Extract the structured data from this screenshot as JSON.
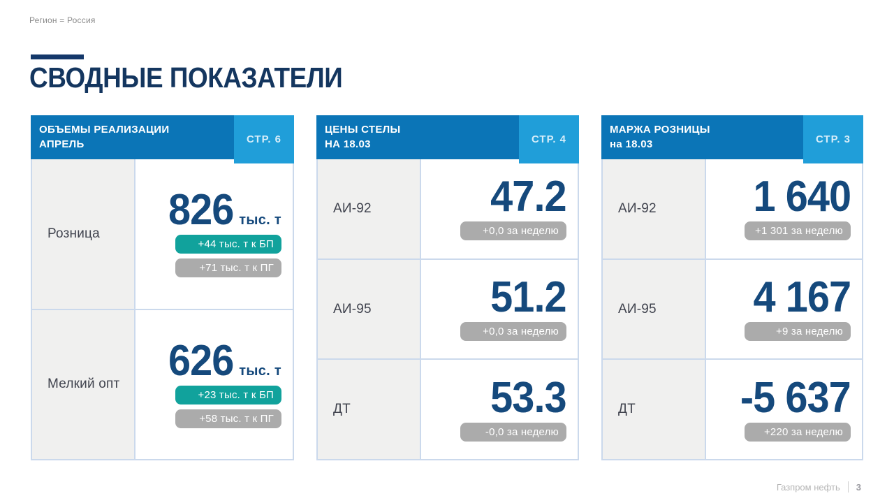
{
  "page": {
    "filter_label": "Регион = Россия",
    "title": "СВОДНЫЕ ПОКАЗАТЕЛИ",
    "footer": {
      "brand": "Газпром нефть",
      "page_number": "3"
    }
  },
  "colors": {
    "header_blue": "#0b75b7",
    "tab_blue": "#209ed9",
    "title_navy": "#14365f",
    "number_navy": "#15497c",
    "badge_teal": "#11a29c",
    "badge_gray": "#ababab",
    "label_cell_bg": "#f0f0ef",
    "grid_border": "#cbd9ec"
  },
  "cards": [
    {
      "title_line1": "ОБЪЕМЫ РЕАЛИЗАЦИИ",
      "title_line2": "АПРЕЛЬ",
      "page_ref": "СТР. 6",
      "rows": [
        {
          "label": "Розница",
          "value": "826",
          "unit": "тыс. т",
          "badges": [
            {
              "text": "+44 тыс. т к БП",
              "type": "teal"
            },
            {
              "text": "+71 тыс. т к ПГ",
              "type": "gray"
            }
          ]
        },
        {
          "label": "Мелкий опт",
          "value": "626",
          "unit": "тыс. т",
          "badges": [
            {
              "text": "+23 тыс. т к БП",
              "type": "teal"
            },
            {
              "text": "+58 тыс. т к ПГ",
              "type": "gray"
            }
          ]
        }
      ]
    },
    {
      "title_line1": "ЦЕНЫ СТЕЛЫ",
      "title_line2": "НА 18.03",
      "page_ref": "СТР. 4",
      "rows": [
        {
          "label": "АИ-92",
          "value": "47.2",
          "badges": [
            {
              "text": "+0,0 за неделю",
              "type": "gray"
            }
          ]
        },
        {
          "label": "АИ-95",
          "value": "51.2",
          "badges": [
            {
              "text": "+0,0 за неделю",
              "type": "gray"
            }
          ]
        },
        {
          "label": "ДТ",
          "value": "53.3",
          "badges": [
            {
              "text": "-0,0 за неделю",
              "type": "gray"
            }
          ]
        }
      ]
    },
    {
      "title_line1": "МАРЖА РОЗНИЦЫ",
      "title_line2": "на 18.03",
      "page_ref": "СТР. 3",
      "rows": [
        {
          "label": "АИ-92",
          "value": "1 640",
          "badges": [
            {
              "text": "+1 301 за неделю",
              "type": "gray"
            }
          ]
        },
        {
          "label": "АИ-95",
          "value": "4 167",
          "badges": [
            {
              "text": "+9 за неделю",
              "type": "gray"
            }
          ]
        },
        {
          "label": "ДТ",
          "value": "-5 637",
          "badges": [
            {
              "text": "+220 за неделю",
              "type": "gray"
            }
          ]
        }
      ]
    }
  ]
}
